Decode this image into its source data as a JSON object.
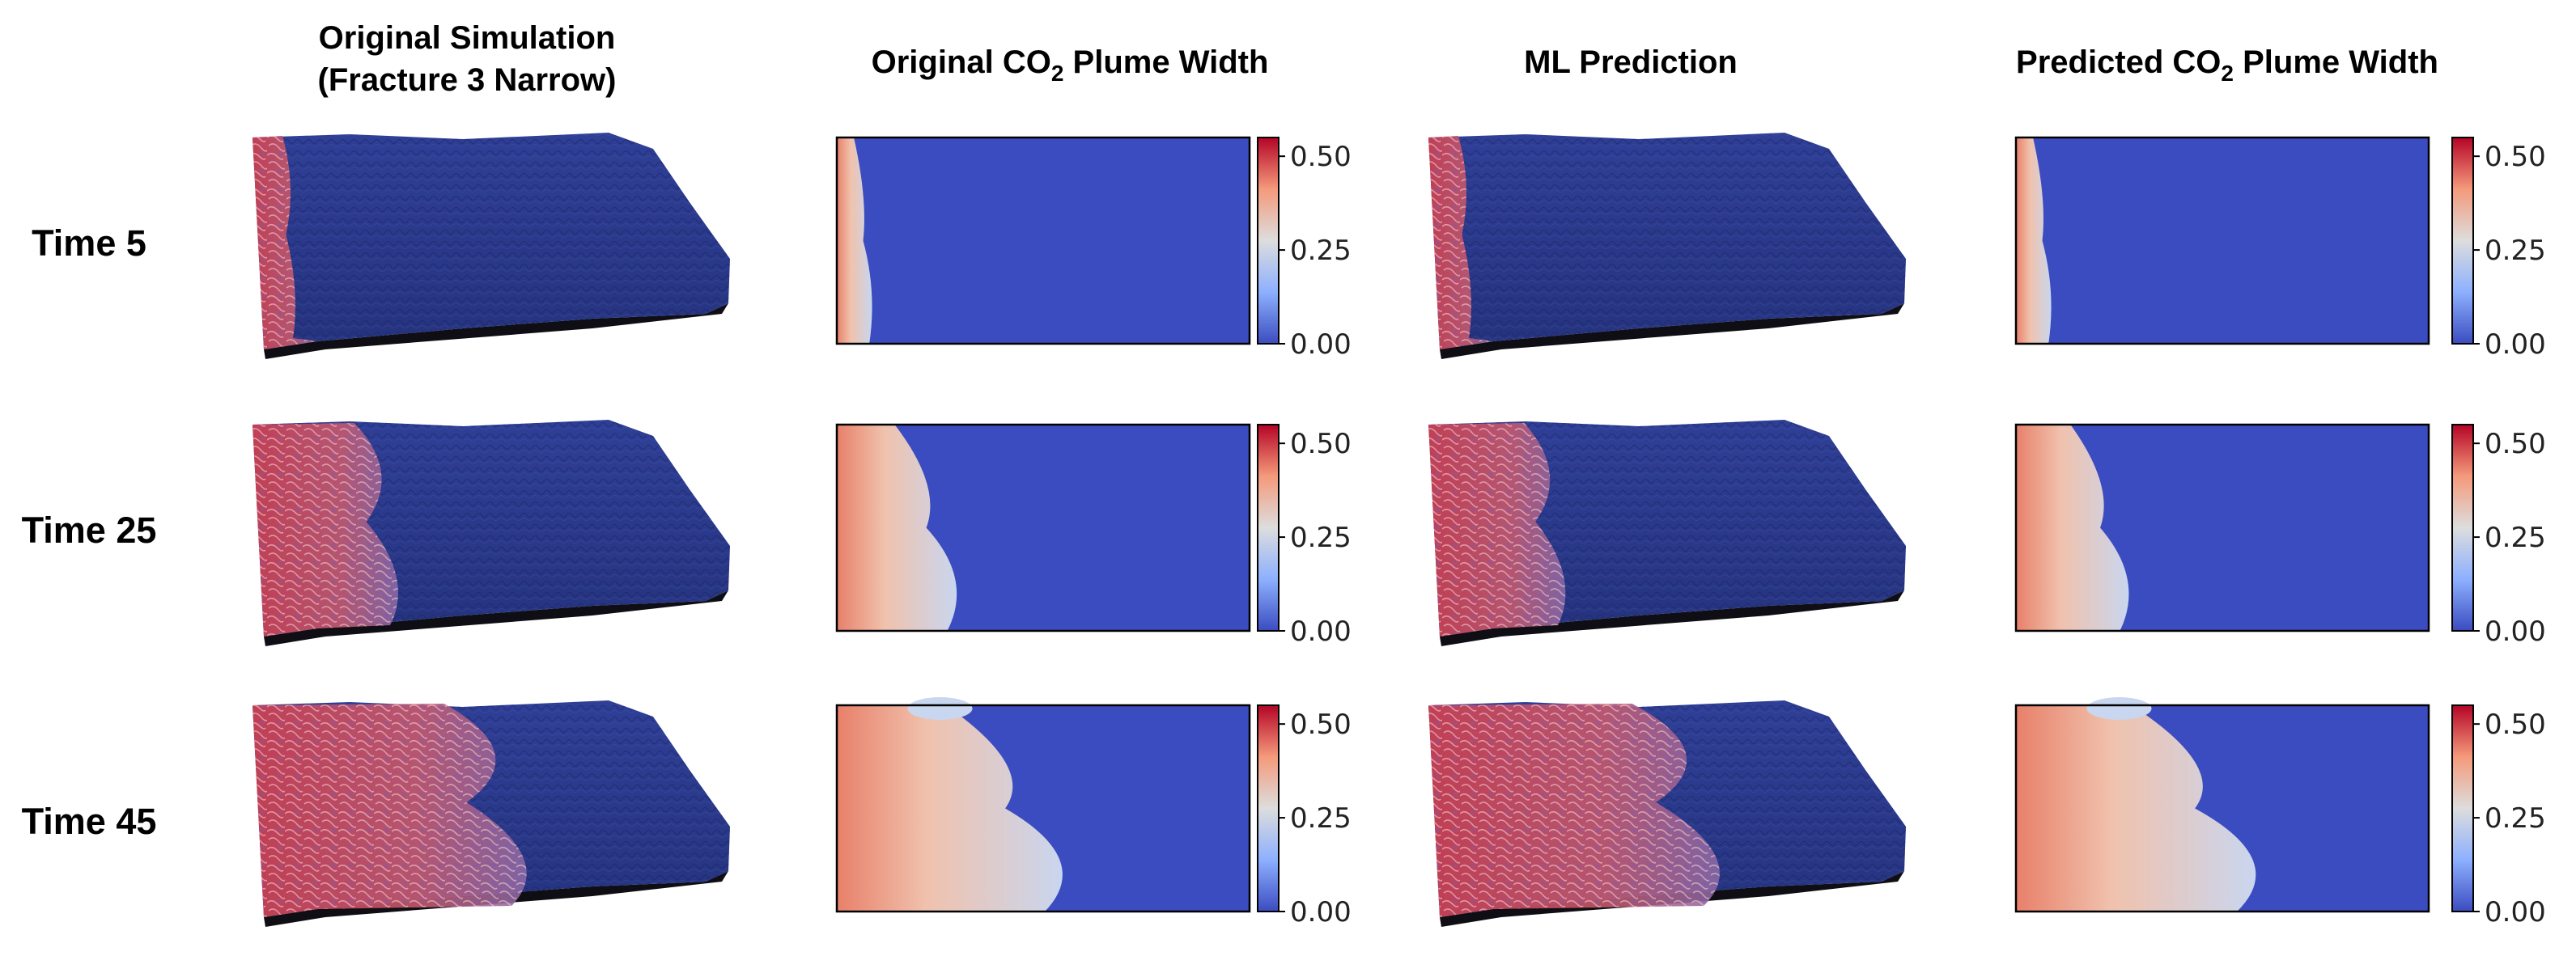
{
  "columns": [
    {
      "line1": "Original Simulation",
      "line2": "(Fracture 3 Narrow)"
    },
    {
      "prefix": "Original CO",
      "sub": "2",
      "suffix": " Plume Width"
    },
    {
      "line1": "ML Prediction"
    },
    {
      "prefix": "Predicted CO",
      "sub": "2",
      "suffix": " Plume Width"
    }
  ],
  "rows": [
    {
      "label": "Time 5"
    },
    {
      "label": "Time 25"
    },
    {
      "label": "Time 45"
    }
  ],
  "colorbar": {
    "ticks": [
      "0.50",
      "0.25",
      "0.00"
    ],
    "tick_values": [
      0.5,
      0.25,
      0.0
    ],
    "range": [
      0,
      0.55
    ],
    "colormap": "coolwarm",
    "colors": [
      "#3b4cc0",
      "#8db0fe",
      "#dddddd",
      "#f49a7b",
      "#b40426"
    ]
  },
  "plume_extent": [
    0.05,
    0.17,
    0.32
  ],
  "predicted_plume_extent": [
    0.05,
    0.16,
    0.34
  ]
}
